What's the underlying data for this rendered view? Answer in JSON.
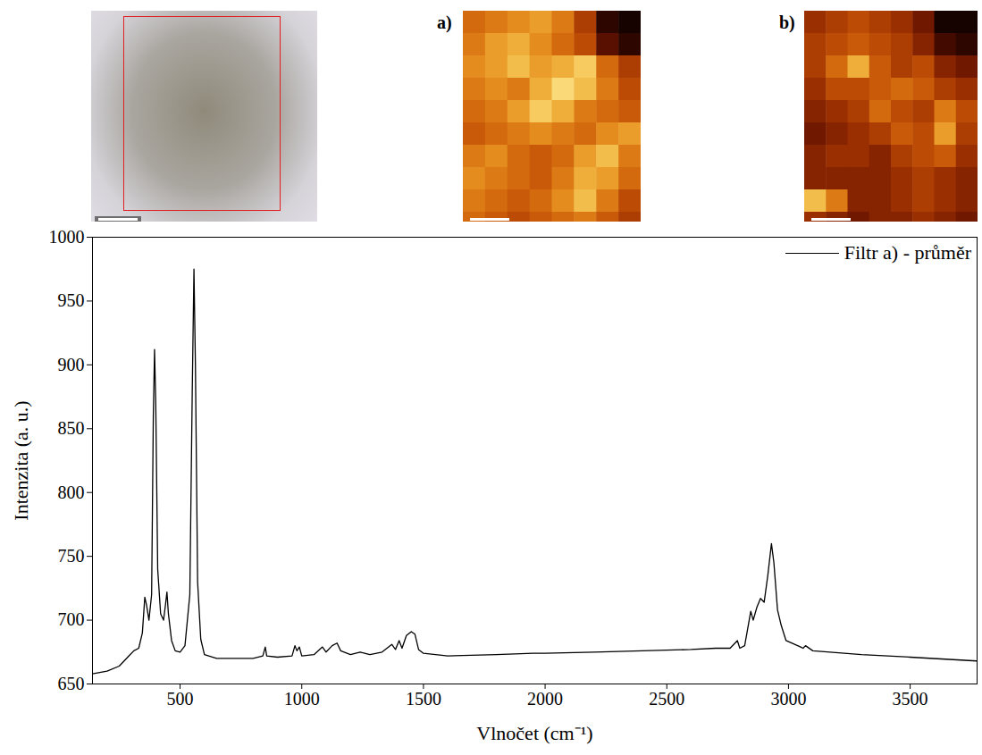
{
  "chart_data": {
    "type": "line",
    "x_label": "Vlnočet (cm⁻¹)",
    "y_label": "Intenzita (a. u.)",
    "xlim": [
      140,
      3775
    ],
    "ylim": [
      650,
      1000
    ],
    "xticks": [
      500,
      1000,
      1500,
      2000,
      2500,
      3000,
      3500
    ],
    "yticks": [
      650,
      700,
      750,
      800,
      850,
      900,
      950,
      1000
    ],
    "legend": "top-right",
    "x": [
      140,
      200,
      250,
      290,
      310,
      330,
      345,
      355,
      362,
      372,
      383,
      390,
      395,
      400,
      408,
      420,
      432,
      440,
      446,
      452,
      465,
      480,
      500,
      520,
      540,
      550,
      557,
      563,
      572,
      585,
      600,
      650,
      800,
      840,
      850,
      856,
      900,
      960,
      972,
      980,
      990,
      1000,
      1050,
      1085,
      1100,
      1125,
      1145,
      1160,
      1200,
      1240,
      1280,
      1330,
      1370,
      1385,
      1400,
      1412,
      1430,
      1450,
      1465,
      1480,
      1500,
      1600,
      1800,
      1950,
      2000,
      2200,
      2400,
      2600,
      2700,
      2760,
      2790,
      2800,
      2820,
      2845,
      2855,
      2870,
      2885,
      2900,
      2915,
      2930,
      2940,
      2955,
      2970,
      2990,
      3050,
      3060,
      3070,
      3100,
      3300,
      3500,
      3775
    ],
    "series": [
      {
        "name": "Filtr a) - průměr",
        "color": "#000000",
        "values": [
          658,
          660,
          664,
          672,
          676,
          678,
          690,
          718,
          712,
          700,
          720,
          860,
          912,
          870,
          740,
          705,
          700,
          712,
          722,
          705,
          684,
          676,
          675,
          680,
          720,
          880,
          975,
          900,
          730,
          685,
          673,
          670,
          670,
          672,
          679,
          672,
          671,
          672,
          680,
          676,
          679,
          672,
          673,
          679,
          675,
          680,
          682,
          676,
          673,
          675,
          673,
          675,
          681,
          677,
          684,
          678,
          688,
          691,
          689,
          677,
          674,
          672,
          673,
          674,
          674,
          675,
          676,
          677,
          678,
          678,
          684,
          678,
          680,
          707,
          700,
          710,
          717,
          714,
          735,
          760,
          745,
          708,
          696,
          684,
          679,
          678,
          680,
          676,
          673,
          671,
          668
        ]
      }
    ]
  },
  "images": [
    {
      "type": "micrograph",
      "scale_bar": "5 µm"
    },
    {
      "type": "heatmap",
      "label": "a)",
      "scale_bar": "4 µm",
      "cells": [
        [
          55,
          60,
          65,
          70,
          60,
          40,
          10,
          5
        ],
        [
          60,
          70,
          75,
          65,
          55,
          45,
          20,
          10
        ],
        [
          65,
          70,
          80,
          70,
          75,
          85,
          55,
          40
        ],
        [
          60,
          65,
          60,
          75,
          90,
          80,
          60,
          45
        ],
        [
          55,
          60,
          70,
          85,
          75,
          60,
          55,
          50
        ],
        [
          50,
          55,
          60,
          65,
          60,
          55,
          65,
          70
        ],
        [
          60,
          65,
          55,
          50,
          55,
          70,
          80,
          60
        ],
        [
          65,
          60,
          55,
          50,
          60,
          75,
          70,
          55
        ],
        [
          60,
          55,
          50,
          55,
          65,
          80,
          60,
          45
        ],
        [
          55,
          50,
          45,
          50,
          55,
          60,
          50,
          40
        ]
      ]
    },
    {
      "type": "heatmap",
      "label": "b)",
      "scale_bar": "4 µm",
      "cells": [
        [
          35,
          40,
          45,
          40,
          35,
          25,
          5,
          5
        ],
        [
          40,
          45,
          50,
          45,
          40,
          30,
          15,
          10
        ],
        [
          40,
          55,
          75,
          50,
          40,
          45,
          30,
          25
        ],
        [
          35,
          45,
          45,
          50,
          55,
          50,
          40,
          35
        ],
        [
          30,
          35,
          40,
          55,
          45,
          40,
          60,
          45
        ],
        [
          25,
          30,
          35,
          40,
          50,
          45,
          70,
          40
        ],
        [
          30,
          35,
          35,
          30,
          40,
          45,
          50,
          35
        ],
        [
          30,
          30,
          30,
          30,
          35,
          40,
          35,
          30
        ],
        [
          80,
          60,
          30,
          30,
          35,
          40,
          35,
          30
        ],
        [
          35,
          30,
          25,
          30,
          30,
          35,
          30,
          25
        ]
      ]
    }
  ]
}
